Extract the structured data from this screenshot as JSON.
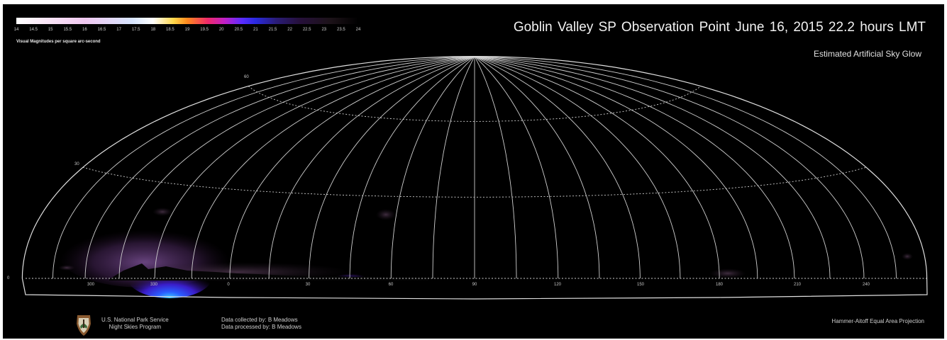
{
  "header": {
    "title": "Goblin Valley SP   Observation Point   June 16, 2015   22.2 hours LMT",
    "subtitle": "Estimated Artificial Sky Glow"
  },
  "colorbar": {
    "label": "Visual Magnitudes per square arc-second",
    "ticks": [
      "14",
      "14.5",
      "15",
      "15.5",
      "16",
      "16.5",
      "17",
      "17.5",
      "18",
      "18.5",
      "19",
      "19.5",
      "20",
      "20.5",
      "21",
      "21.5",
      "22",
      "22.5",
      "23",
      "23.5",
      "24"
    ]
  },
  "grid": {
    "altitude_labels": [
      "60",
      "30",
      "0"
    ],
    "azimuth_labels": [
      "300",
      "330",
      "0",
      "30",
      "60",
      "90",
      "120",
      "150",
      "180",
      "210",
      "240"
    ]
  },
  "footer": {
    "agency_line1": "U.S. National Park Service",
    "agency_line2": "Night Skies Program",
    "collected": "Data collected by: B Meadows",
    "processed": "Data processed by: B Meadows",
    "projection": "Hammer-Aitoff Equal Area Projection"
  },
  "colors": {
    "background": "#000000",
    "grid": "#cfcfcf",
    "glow_blue": "#2a2aff",
    "glow_cyan": "#20c8ff",
    "glow_purple": "#7a4a9a"
  }
}
